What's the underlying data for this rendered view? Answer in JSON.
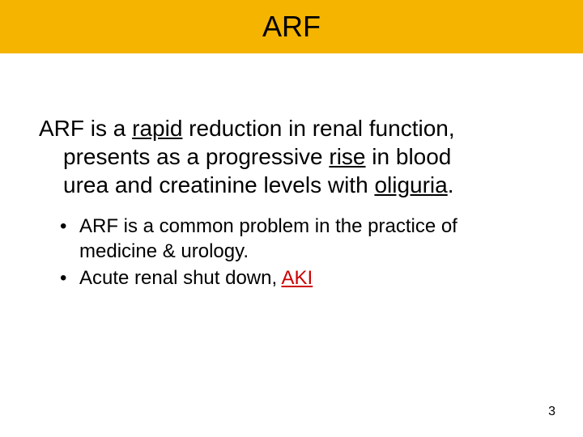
{
  "slide": {
    "title": "ARF",
    "title_bar_color": "#f4b400",
    "definition": {
      "line1_pre": "ARF is a ",
      "line1_u1": "rapid",
      "line1_post": " reduction in renal function,",
      "line2_pre": "presents as a progressive ",
      "line2_u1": "rise",
      "line2_post": " in blood",
      "line3_pre": "urea and creatinine levels with ",
      "line3_u1": "oliguria",
      "line3_post": "."
    },
    "bullets": [
      {
        "text_a": "ARF is a common problem in the practice of",
        "text_b": "medicine & urology."
      },
      {
        "text_a": "Acute renal shut down, ",
        "aki": "AKI"
      }
    ],
    "page_number": "3"
  },
  "styling": {
    "background_color": "#ffffff",
    "title_fontsize": 36,
    "body_fontsize": 28,
    "bullet_fontsize": 24,
    "text_color": "#000000",
    "aki_color": "#cc0000",
    "font_family": "Arial"
  }
}
